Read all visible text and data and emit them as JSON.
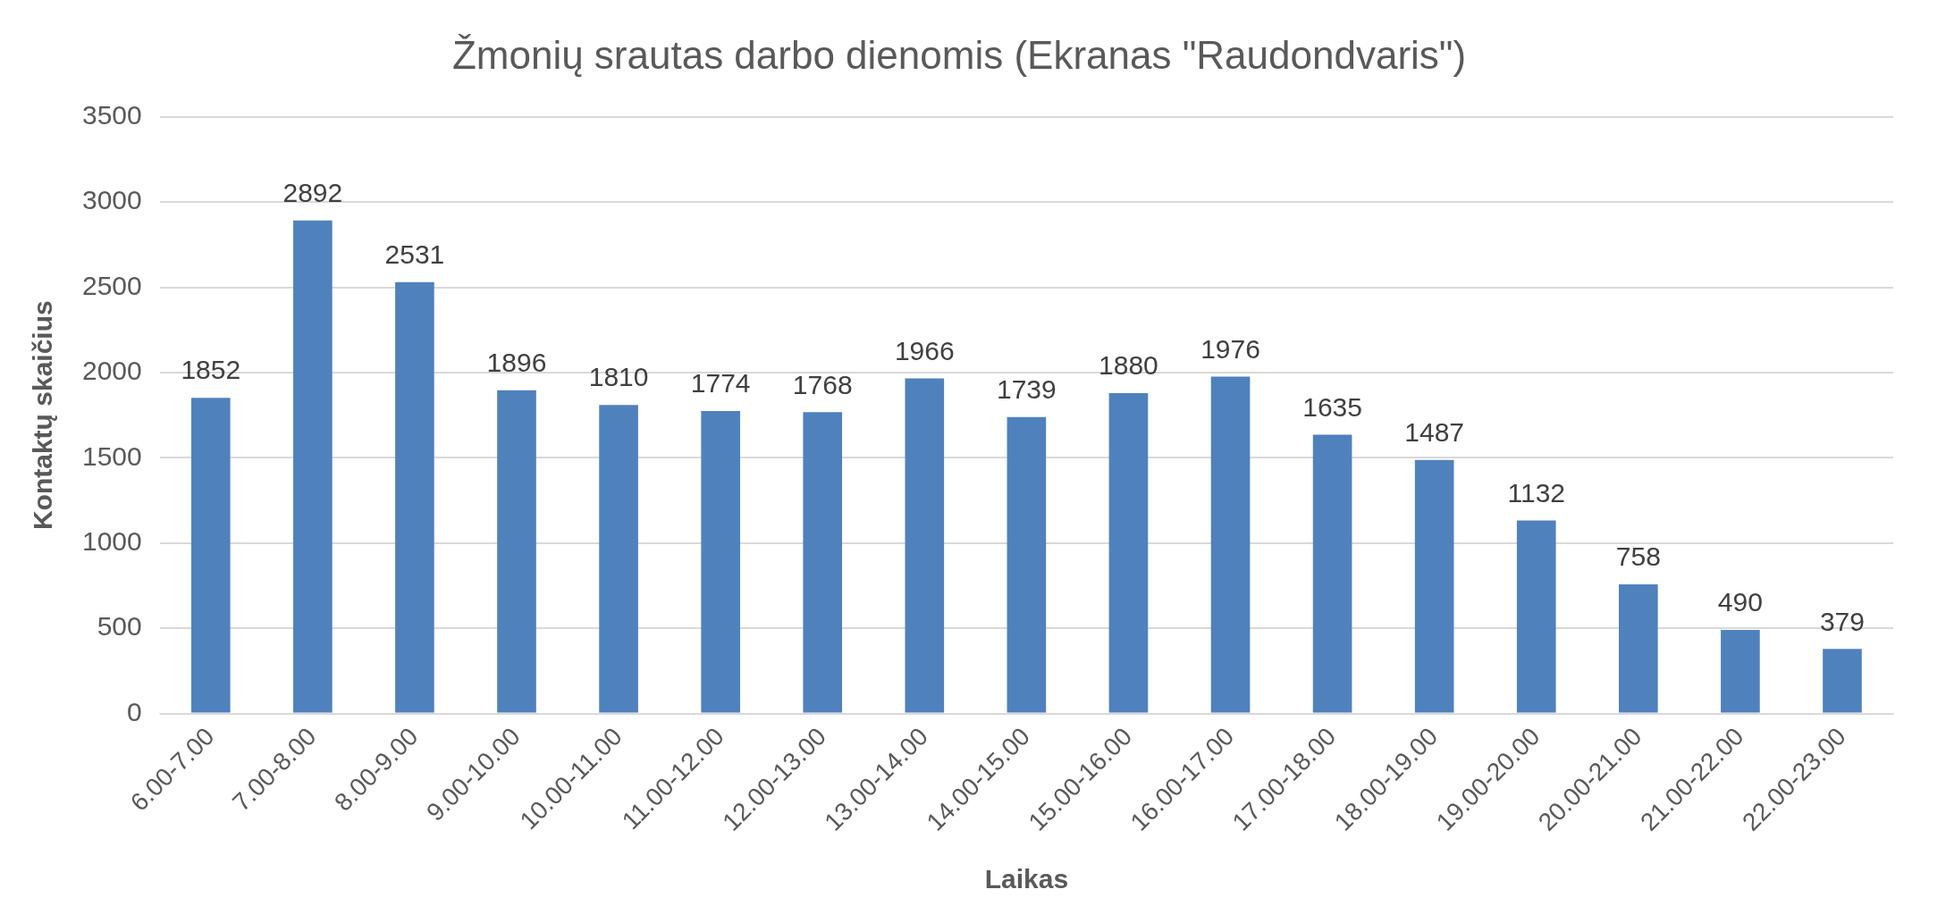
{
  "chart_data": {
    "type": "bar",
    "title": "Žmonių srautas darbo dienomis (Ekranas \"Raudondvaris\")",
    "xlabel": "Laikas",
    "ylabel": "Kontaktų skaičius",
    "categories": [
      "6.00-7.00",
      "7.00-8.00",
      "8.00-9.00",
      "9.00-10.00",
      "10.00-11.00",
      "11.00-12.00",
      "12.00-13.00",
      "13.00-14.00",
      "14.00-15.00",
      "15.00-16.00",
      "16.00-17.00",
      "17.00-18.00",
      "18.00-19.00",
      "19.00-20.00",
      "20.00-21.00",
      "21.00-22.00",
      "22.00-23.00"
    ],
    "values": [
      1852,
      2892,
      2531,
      1896,
      1810,
      1774,
      1768,
      1966,
      1739,
      1880,
      1976,
      1635,
      1487,
      1132,
      758,
      490,
      379
    ],
    "color": "#4f81bd",
    "ylim": [
      0,
      3500
    ],
    "yticks": [
      0,
      500,
      1000,
      1500,
      2000,
      2500,
      3000,
      3500
    ],
    "grid": "y",
    "data_labels": true,
    "legend": false
  }
}
